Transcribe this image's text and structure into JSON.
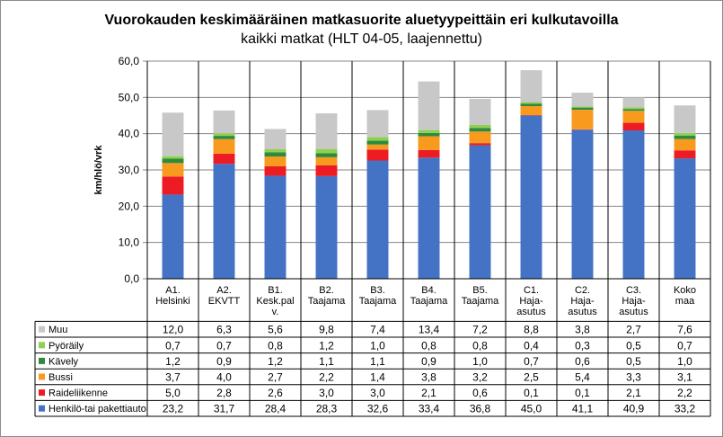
{
  "chart_data": {
    "type": "bar",
    "stacked": true,
    "title": "Vuorokauden keskimääräinen matkasuorite aluetyypeittäin eri kulkutavoilla",
    "subtitle": "kaikki matkat (HLT 04-05, laajennettu)",
    "ylabel": "km/hlö/vrk",
    "xlabel": "",
    "ylim": [
      0,
      60
    ],
    "yticks": [
      "0,0",
      "10,0",
      "20,0",
      "30,0",
      "40,0",
      "50,0",
      "60,0"
    ],
    "grid": true,
    "legend": "table",
    "categories": [
      [
        "A1.",
        "Helsinki"
      ],
      [
        "A2.",
        "EKVTT"
      ],
      [
        "B1.",
        "Kesk.pal",
        "v."
      ],
      [
        "B2.",
        "Taajama"
      ],
      [
        "B3.",
        "Taajama"
      ],
      [
        "B4.",
        "Taajama"
      ],
      [
        "B5.",
        "Taajama"
      ],
      [
        "C1.",
        "Haja-",
        "asutus"
      ],
      [
        "C2.",
        "Haja-",
        "asutus"
      ],
      [
        "C3.",
        "Haja-",
        "asutus"
      ],
      [
        "Koko",
        "maa"
      ]
    ],
    "series": [
      {
        "name": "Henkilö-tai pakettiauto",
        "color": "#4472c4",
        "values": [
          23.2,
          31.7,
          28.4,
          28.3,
          32.6,
          33.4,
          36.8,
          45.0,
          41.1,
          40.9,
          33.2
        ],
        "labels": [
          "23,2",
          "31,7",
          "28,4",
          "28,3",
          "32,6",
          "33,4",
          "36,8",
          "45,0",
          "41,1",
          "40,9",
          "33,2"
        ]
      },
      {
        "name": "Raideliikenne",
        "color": "#ed1c24",
        "values": [
          5.0,
          2.8,
          2.6,
          3.0,
          3.0,
          2.1,
          0.6,
          0.1,
          0.1,
          2.1,
          2.2
        ],
        "labels": [
          "5,0",
          "2,8",
          "2,6",
          "3,0",
          "3,0",
          "2,1",
          "0,6",
          "0,1",
          "0,1",
          "2,1",
          "2,2"
        ]
      },
      {
        "name": "Bussi",
        "color": "#f79a1e",
        "values": [
          3.7,
          4.0,
          2.7,
          2.2,
          1.4,
          3.8,
          3.2,
          2.5,
          5.4,
          3.3,
          3.1
        ],
        "labels": [
          "3,7",
          "4,0",
          "2,7",
          "2,2",
          "1,4",
          "3,8",
          "3,2",
          "2,5",
          "5,4",
          "3,3",
          "3,1"
        ]
      },
      {
        "name": "Kävely",
        "color": "#2e8b3e",
        "values": [
          1.2,
          0.9,
          1.2,
          1.1,
          1.1,
          0.9,
          1.0,
          0.7,
          0.6,
          0.5,
          1.0
        ],
        "labels": [
          "1,2",
          "0,9",
          "1,2",
          "1,1",
          "1,1",
          "0,9",
          "1,0",
          "0,7",
          "0,6",
          "0,5",
          "1,0"
        ]
      },
      {
        "name": "Pyöräily",
        "color": "#8fd14f",
        "values": [
          0.7,
          0.7,
          0.8,
          1.2,
          1.0,
          0.8,
          0.8,
          0.4,
          0.3,
          0.5,
          0.7
        ],
        "labels": [
          "0,7",
          "0,7",
          "0,8",
          "1,2",
          "1,0",
          "0,8",
          "0,8",
          "0,4",
          "0,3",
          "0,5",
          "0,7"
        ]
      },
      {
        "name": "Muu",
        "color": "#c8c8c8",
        "values": [
          12.0,
          6.3,
          5.6,
          9.8,
          7.4,
          13.4,
          7.2,
          8.8,
          3.8,
          2.7,
          7.6
        ],
        "labels": [
          "12,0",
          "6,3",
          "5,6",
          "9,8",
          "7,4",
          "13,4",
          "7,2",
          "8,8",
          "3,8",
          "2,7",
          "7,6"
        ]
      }
    ]
  }
}
